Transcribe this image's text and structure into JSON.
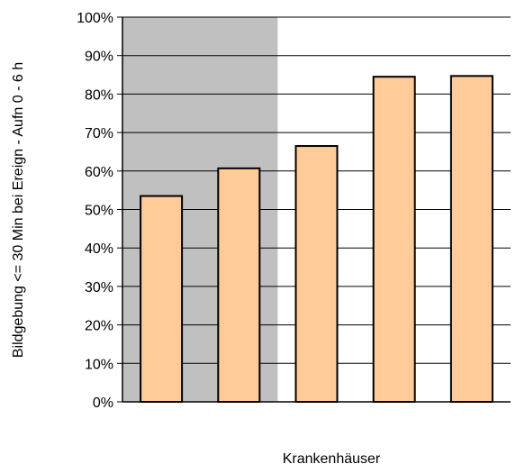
{
  "chart_data": {
    "type": "bar",
    "title": "",
    "xlabel": "Krankenhäuser",
    "ylabel": "Bildgebung <= 30 Min bei Ereign - Aufn 0 - 6 h",
    "categories": [
      "",
      "",
      "",
      "",
      ""
    ],
    "values": [
      0.535,
      0.607,
      0.665,
      0.845,
      0.847
    ],
    "ylim": [
      0,
      1
    ],
    "yticks": [
      "0%",
      "10%",
      "20%",
      "30%",
      "40%",
      "50%",
      "60%",
      "70%",
      "80%",
      "90%",
      "100%"
    ],
    "grid": "horizontal",
    "highlight_region": {
      "from_category": 0,
      "to_category": 1,
      "color": "#c0c0c0"
    },
    "colors": {
      "bar_fill": "#ffcc99",
      "bar_stroke": "#000000",
      "grid": "#000000",
      "highlight": "#c0c0c0"
    }
  }
}
